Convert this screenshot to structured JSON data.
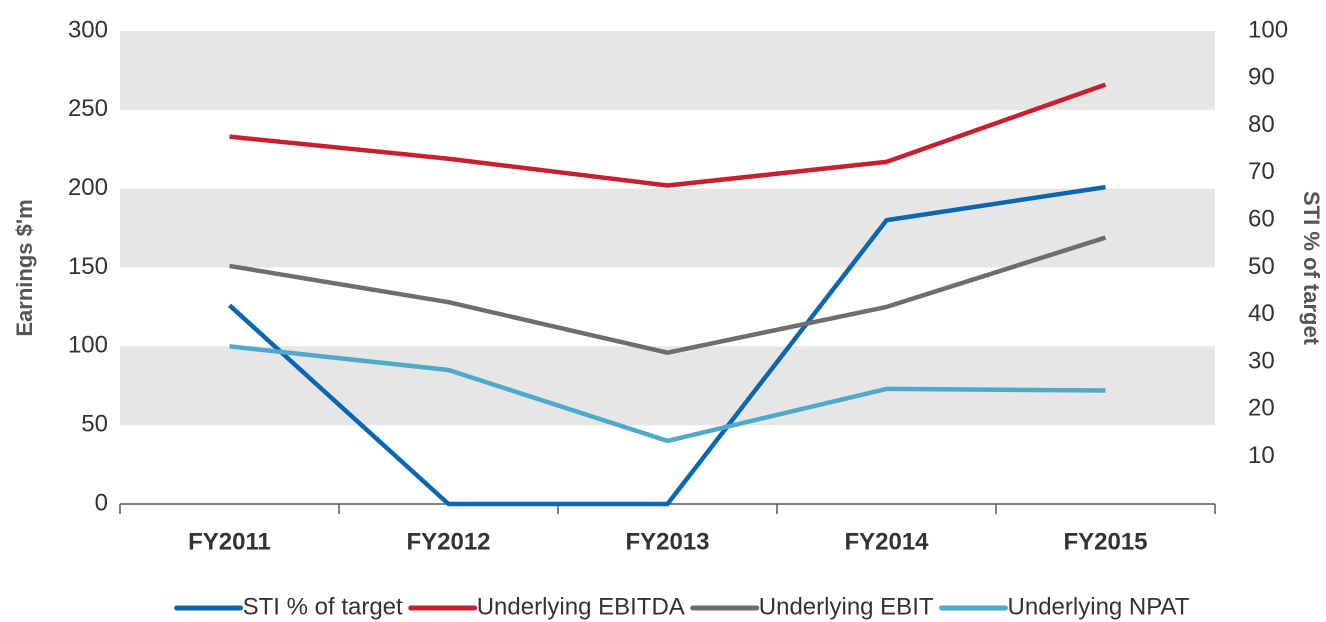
{
  "chart_data": {
    "type": "line",
    "categories": [
      "FY2011",
      "FY2012",
      "FY2013",
      "FY2014",
      "FY2015"
    ],
    "y_label": "Earnings $'m",
    "y2_label": "STI % of target",
    "ylim": [
      0,
      300
    ],
    "yticks": [
      0,
      50,
      100,
      150,
      200,
      250,
      300
    ],
    "y2lim": [
      0,
      100
    ],
    "y2ticks": [
      10,
      20,
      30,
      40,
      50,
      60,
      70,
      80,
      90,
      100
    ],
    "grid": true,
    "legend": "bottom",
    "series": [
      {
        "name": "STI % of target",
        "color": "#0b67b0",
        "axis": "y2",
        "values": [
          42,
          0,
          0,
          60,
          67
        ]
      },
      {
        "name": "Underlying EBITDA",
        "color": "#c8202f",
        "values": [
          233,
          219,
          202,
          217,
          266
        ]
      },
      {
        "name": "Underlying EBIT",
        "color": "#6d6e71",
        "values": [
          151,
          128,
          96,
          125,
          169
        ]
      },
      {
        "name": "Underlying NPAT",
        "color": "#4eaac8",
        "values": [
          100,
          85,
          40,
          73,
          72
        ]
      }
    ]
  }
}
